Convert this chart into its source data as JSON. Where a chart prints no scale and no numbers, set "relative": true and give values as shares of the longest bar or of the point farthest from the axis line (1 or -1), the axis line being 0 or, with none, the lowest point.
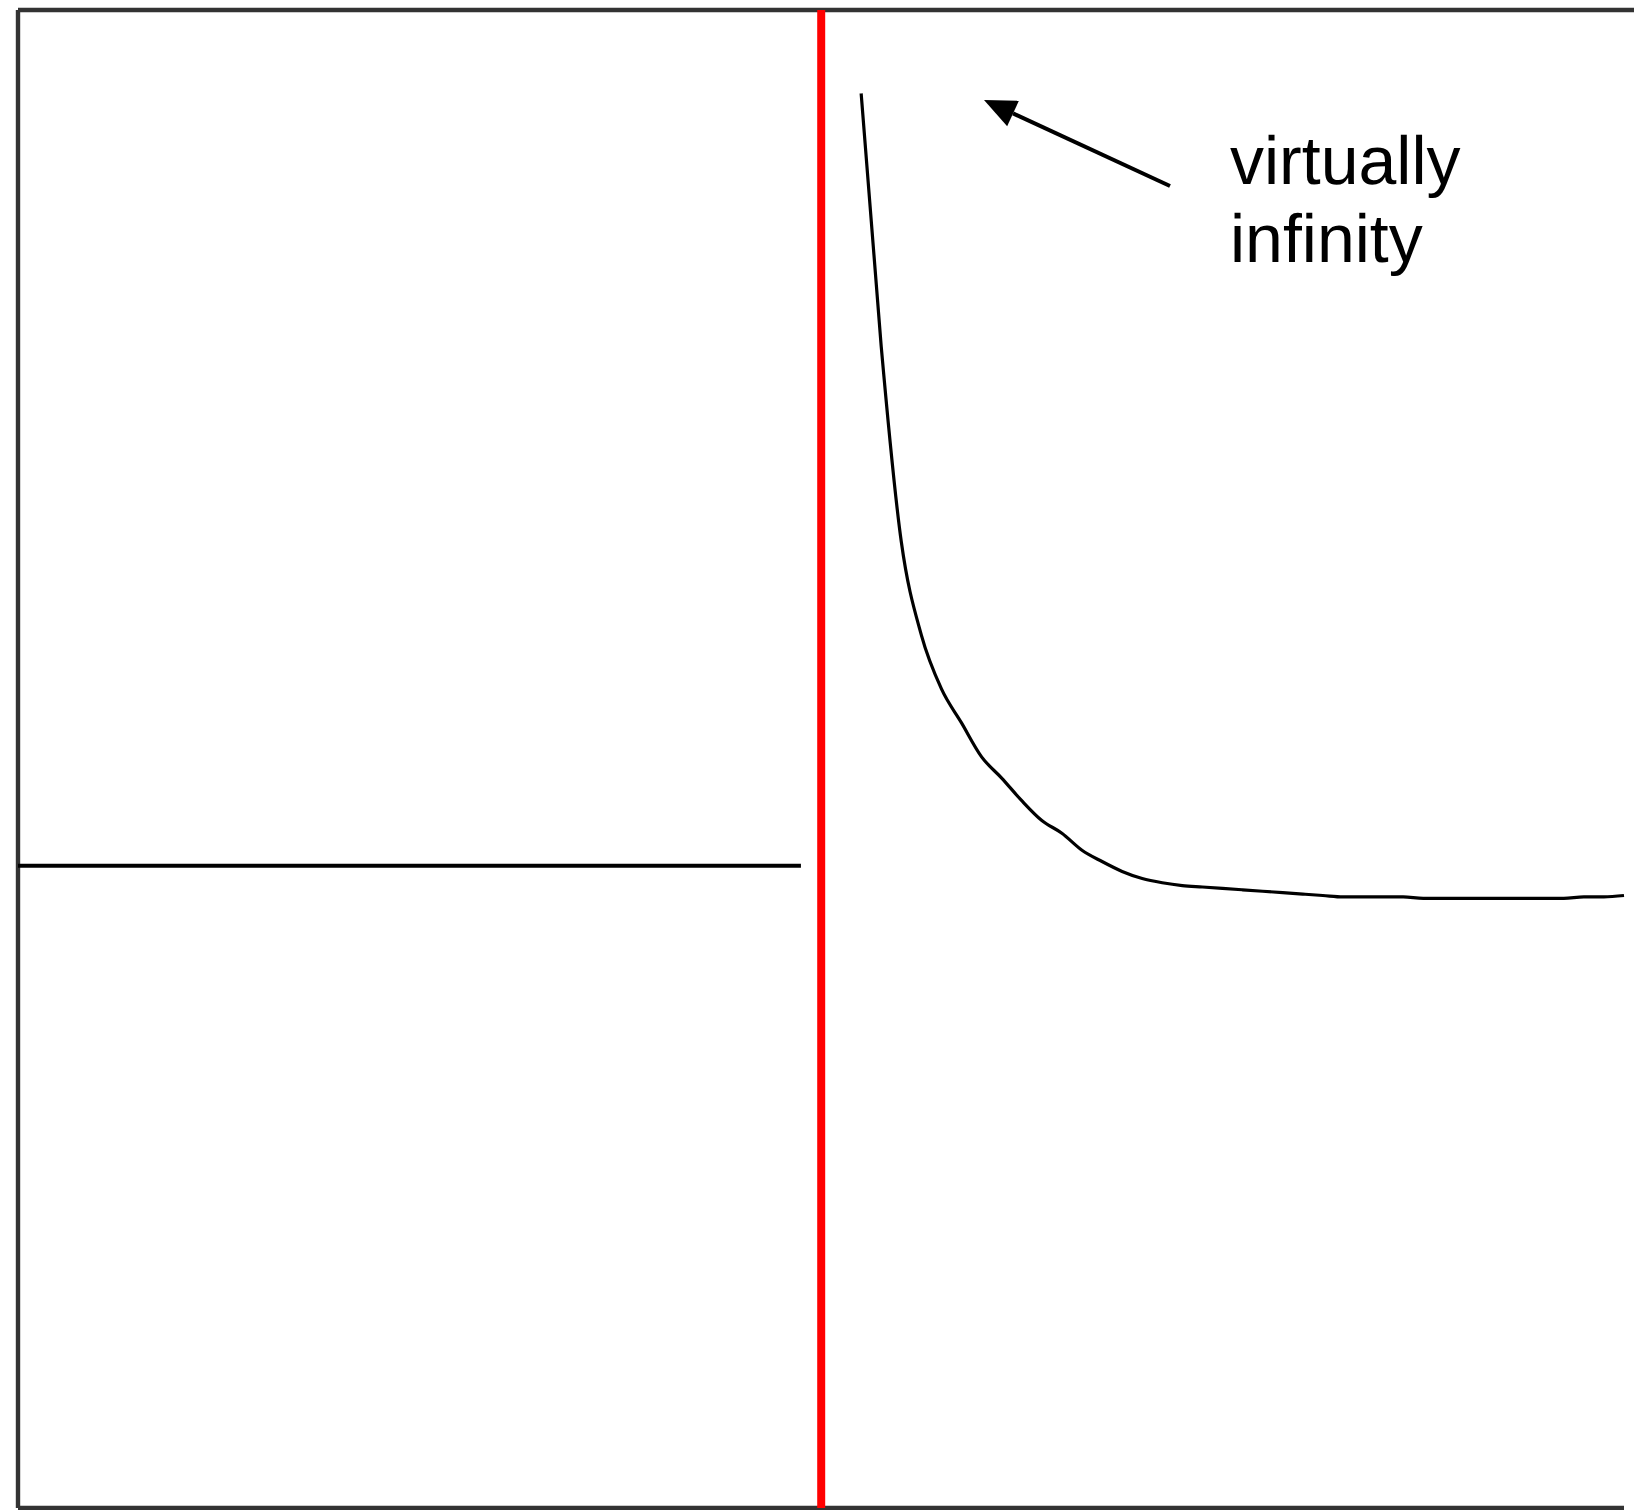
{
  "chart_data": {
    "type": "line",
    "relative": true,
    "categories": [
      null,
      null,
      null,
      null,
      null,
      null,
      null,
      null,
      null,
      null,
      null,
      null,
      null,
      null,
      null,
      null,
      null,
      null,
      null,
      null,
      null,
      null,
      null,
      null,
      null,
      null,
      null,
      null,
      null,
      null,
      null,
      null,
      null,
      null,
      null,
      null,
      null,
      null,
      null,
      null,
      null,
      null,
      null,
      null,
      null,
      null,
      null,
      null,
      null,
      null,
      null,
      null,
      null,
      null,
      null,
      null,
      null,
      null,
      null,
      null,
      null,
      null,
      null,
      null,
      null,
      null,
      null,
      null,
      null,
      null,
      null,
      null,
      null,
      null,
      null,
      null,
      null,
      null,
      null,
      null,
      null
    ],
    "series": [
      {
        "color": "#000000",
        "values": [
          0.454,
          0.454,
          0.454,
          0.454,
          0.454,
          0.454,
          0.454,
          0.454,
          0.454,
          0.454,
          0.454,
          0.454,
          0.454,
          0.454,
          0.454,
          0.454,
          0.454,
          0.454,
          0.454,
          0.454,
          0.454,
          0.454,
          0.454,
          0.454,
          0.454,
          0.454,
          0.454,
          0.454,
          0.454,
          0.454,
          0.454,
          0.454,
          0.454,
          0.454,
          0.454,
          0.454,
          0.454,
          0.454,
          0.454,
          0.454,
          null,
          null,
          null,
          null,
          null,
          null,
          null,
          null,
          null,
          null,
          null,
          null,
          null,
          null,
          null,
          null,
          null,
          null,
          null,
          null,
          null,
          null,
          null,
          null,
          null,
          null,
          null,
          null,
          null,
          null,
          null,
          null,
          null,
          null,
          null,
          null,
          null,
          null,
          null,
          null,
          null
        ]
      },
      {
        "color": "#000000",
        "values": [
          null,
          null,
          null,
          null,
          null,
          null,
          null,
          null,
          null,
          null,
          null,
          null,
          null,
          null,
          null,
          null,
          null,
          null,
          null,
          null,
          null,
          null,
          null,
          null,
          null,
          null,
          null,
          null,
          null,
          null,
          null,
          null,
          null,
          null,
          null,
          null,
          null,
          null,
          null,
          null,
          null,
          null,
          1,
          0.821,
          0.683,
          0.617,
          0.579,
          0.555,
          0.531,
          0.516,
          0.5,
          0.486,
          0.477,
          0.465,
          0.457,
          0.45,
          0.445,
          0.442,
          0.44,
          0.439,
          0.438,
          0.437,
          0.436,
          0.435,
          0.434,
          0.433,
          0.432,
          0.432,
          0.432,
          0.432,
          0.431,
          0.431,
          0.431,
          0.431,
          0.431,
          0.431,
          0.431,
          0.431,
          0.432,
          0.432,
          0.433
        ]
      }
    ],
    "annotations": [
      "virtually infinity"
    ]
  }
}
